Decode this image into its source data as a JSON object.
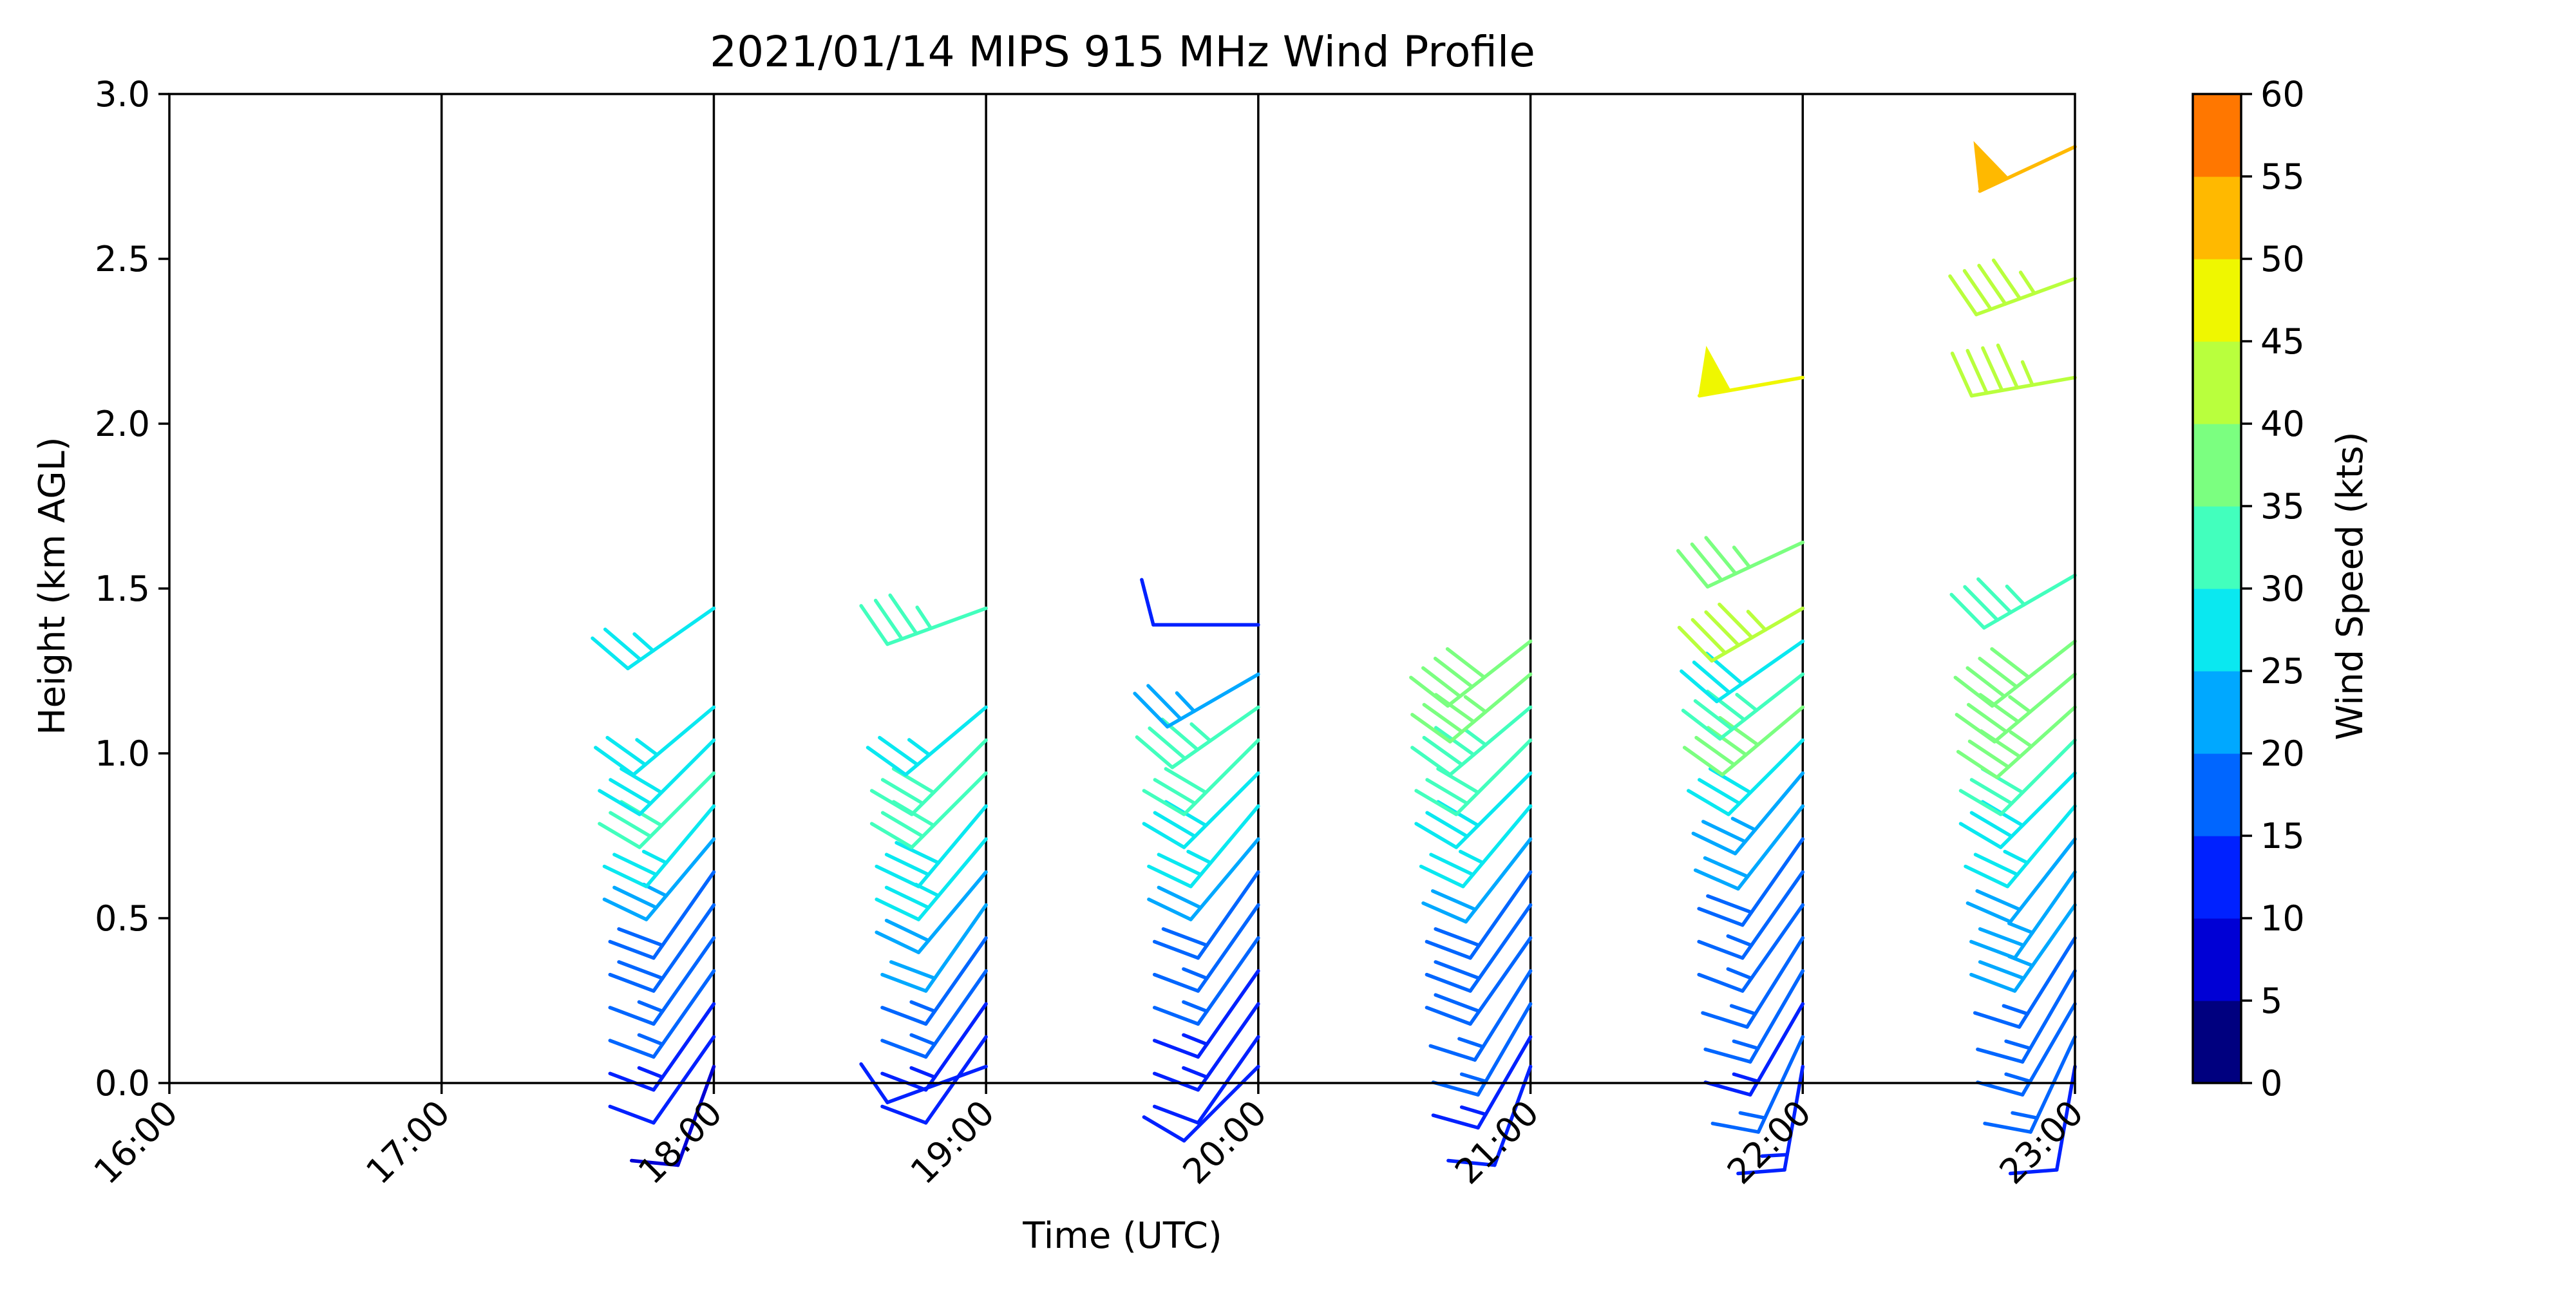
{
  "chart_data": {
    "type": "wind-barb",
    "title": "2021/01/14 MIPS 915 MHz Wind Profile",
    "xlabel": "Time (UTC)",
    "ylabel": "Height (km AGL)",
    "x_ticks": [
      "16:00",
      "17:00",
      "18:00",
      "19:00",
      "20:00",
      "21:00",
      "22:00",
      "23:00"
    ],
    "xlim": [
      "16:00",
      "23:00"
    ],
    "ylim": [
      0.0,
      3.0
    ],
    "y_ticks": [
      "0.0",
      "0.5",
      "1.0",
      "1.5",
      "2.0",
      "2.5",
      "3.0"
    ],
    "vertical_gridlines_at": [
      "17:00",
      "18:00",
      "19:00",
      "20:00",
      "21:00",
      "22:00"
    ],
    "grid": false,
    "colorbar": {
      "label": "Wind Speed (kts)",
      "ticks": [
        "0",
        "5",
        "10",
        "15",
        "20",
        "25",
        "30",
        "35",
        "40",
        "45",
        "50",
        "55",
        "60"
      ],
      "bounds": [
        0,
        60
      ],
      "step": 5,
      "colors": [
        "#00007f",
        "#0000d5",
        "#0021ff",
        "#0066ff",
        "#00a8ff",
        "#0ae8f0",
        "#42ffbd",
        "#7bff80",
        "#b9ff3d",
        "#eff700",
        "#ffb900",
        "#ff7700",
        "#ff3700",
        "#ee0000",
        "#7f0000"
      ]
    },
    "barb_units": "kts",
    "series": [
      {
        "time": "18:00",
        "barbs": [
          {
            "height": 0.05,
            "speed": 9,
            "direction": 200
          },
          {
            "height": 0.14,
            "speed": 10,
            "direction": 215
          },
          {
            "height": 0.24,
            "speed": 14,
            "direction": 215
          },
          {
            "height": 0.34,
            "speed": 15,
            "direction": 215
          },
          {
            "height": 0.44,
            "speed": 16,
            "direction": 215
          },
          {
            "height": 0.54,
            "speed": 18,
            "direction": 215
          },
          {
            "height": 0.64,
            "speed": 19,
            "direction": 215
          },
          {
            "height": 0.74,
            "speed": 24,
            "direction": 220
          },
          {
            "height": 0.84,
            "speed": 26,
            "direction": 220
          },
          {
            "height": 0.94,
            "speed": 32,
            "direction": 225
          },
          {
            "height": 1.04,
            "speed": 28,
            "direction": 225
          },
          {
            "height": 1.14,
            "speed": 25,
            "direction": 230
          },
          {
            "height": 1.44,
            "speed": 25,
            "direction": 235
          }
        ]
      },
      {
        "time": "19:00",
        "barbs": [
          {
            "height": 0.05,
            "speed": 10,
            "direction": 250
          },
          {
            "height": 0.14,
            "speed": 11,
            "direction": 215
          },
          {
            "height": 0.24,
            "speed": 13,
            "direction": 215
          },
          {
            "height": 0.34,
            "speed": 16,
            "direction": 215
          },
          {
            "height": 0.44,
            "speed": 17,
            "direction": 215
          },
          {
            "height": 0.54,
            "speed": 21,
            "direction": 215
          },
          {
            "height": 0.64,
            "speed": 22,
            "direction": 220
          },
          {
            "height": 0.74,
            "speed": 26,
            "direction": 220
          },
          {
            "height": 0.84,
            "speed": 28,
            "direction": 220
          },
          {
            "height": 0.94,
            "speed": 32,
            "direction": 225
          },
          {
            "height": 1.04,
            "speed": 30,
            "direction": 225
          },
          {
            "height": 1.14,
            "speed": 27,
            "direction": 230
          },
          {
            "height": 1.44,
            "speed": 33,
            "direction": 250
          }
        ]
      },
      {
        "time": "20:00",
        "barbs": [
          {
            "height": 0.05,
            "speed": 10,
            "direction": 225
          },
          {
            "height": 0.14,
            "speed": 12,
            "direction": 215
          },
          {
            "height": 0.24,
            "speed": 13,
            "direction": 215
          },
          {
            "height": 0.34,
            "speed": 14,
            "direction": 215
          },
          {
            "height": 0.44,
            "speed": 15,
            "direction": 215
          },
          {
            "height": 0.54,
            "speed": 17,
            "direction": 215
          },
          {
            "height": 0.64,
            "speed": 18,
            "direction": 215
          },
          {
            "height": 0.74,
            "speed": 22,
            "direction": 220
          },
          {
            "height": 0.84,
            "speed": 25,
            "direction": 220
          },
          {
            "height": 0.94,
            "speed": 28,
            "direction": 225
          },
          {
            "height": 1.04,
            "speed": 30,
            "direction": 225
          },
          {
            "height": 1.14,
            "speed": 34,
            "direction": 235
          },
          {
            "height": 1.24,
            "speed": 24,
            "direction": 240
          },
          {
            "height": 1.39,
            "speed": 12,
            "direction": 270
          }
        ]
      },
      {
        "time": "21:00",
        "barbs": [
          {
            "height": 0.05,
            "speed": 12,
            "direction": 200
          },
          {
            "height": 0.14,
            "speed": 13,
            "direction": 210
          },
          {
            "height": 0.24,
            "speed": 16,
            "direction": 210
          },
          {
            "height": 0.34,
            "speed": 17,
            "direction": 212
          },
          {
            "height": 0.44,
            "speed": 18,
            "direction": 215
          },
          {
            "height": 0.54,
            "speed": 18,
            "direction": 215
          },
          {
            "height": 0.64,
            "speed": 19,
            "direction": 215
          },
          {
            "height": 0.74,
            "speed": 22,
            "direction": 218
          },
          {
            "height": 0.84,
            "speed": 26,
            "direction": 220
          },
          {
            "height": 0.94,
            "speed": 28,
            "direction": 225
          },
          {
            "height": 1.04,
            "speed": 30,
            "direction": 225
          },
          {
            "height": 1.14,
            "speed": 33,
            "direction": 230
          },
          {
            "height": 1.24,
            "speed": 36,
            "direction": 230
          },
          {
            "height": 1.34,
            "speed": 38,
            "direction": 232
          }
        ]
      },
      {
        "time": "22:00",
        "barbs": [
          {
            "height": 0.05,
            "speed": 14,
            "direction": 190
          },
          {
            "height": 0.14,
            "speed": 15,
            "direction": 205
          },
          {
            "height": 0.24,
            "speed": 14,
            "direction": 210
          },
          {
            "height": 0.34,
            "speed": 16,
            "direction": 210
          },
          {
            "height": 0.44,
            "speed": 16,
            "direction": 212
          },
          {
            "height": 0.54,
            "speed": 17,
            "direction": 215
          },
          {
            "height": 0.64,
            "speed": 17,
            "direction": 215
          },
          {
            "height": 0.74,
            "speed": 18,
            "direction": 215
          },
          {
            "height": 0.84,
            "speed": 20,
            "direction": 218
          },
          {
            "height": 0.94,
            "speed": 23,
            "direction": 220
          },
          {
            "height": 1.04,
            "speed": 28,
            "direction": 225
          },
          {
            "height": 1.14,
            "speed": 38,
            "direction": 230
          },
          {
            "height": 1.24,
            "speed": 33,
            "direction": 232
          },
          {
            "height": 1.34,
            "speed": 29,
            "direction": 235
          },
          {
            "height": 1.44,
            "speed": 44,
            "direction": 240
          },
          {
            "height": 1.64,
            "speed": 36,
            "direction": 245
          },
          {
            "height": 2.14,
            "speed": 48,
            "direction": 260
          }
        ]
      },
      {
        "time": "23:00",
        "barbs": [
          {
            "height": 0.05,
            "speed": 12,
            "direction": 190
          },
          {
            "height": 0.14,
            "speed": 15,
            "direction": 205
          },
          {
            "height": 0.24,
            "speed": 16,
            "direction": 210
          },
          {
            "height": 0.34,
            "speed": 16,
            "direction": 210
          },
          {
            "height": 0.44,
            "speed": 16,
            "direction": 212
          },
          {
            "height": 0.54,
            "speed": 23,
            "direction": 215
          },
          {
            "height": 0.64,
            "speed": 23,
            "direction": 215
          },
          {
            "height": 0.74,
            "speed": 22,
            "direction": 218
          },
          {
            "height": 0.84,
            "speed": 25,
            "direction": 220
          },
          {
            "height": 0.94,
            "speed": 28,
            "direction": 225
          },
          {
            "height": 1.04,
            "speed": 30,
            "direction": 225
          },
          {
            "height": 1.14,
            "speed": 37,
            "direction": 228
          },
          {
            "height": 1.24,
            "speed": 37,
            "direction": 230
          },
          {
            "height": 1.34,
            "speed": 38,
            "direction": 232
          },
          {
            "height": 1.54,
            "speed": 34,
            "direction": 240
          },
          {
            "height": 2.14,
            "speed": 44,
            "direction": 260
          },
          {
            "height": 2.44,
            "speed": 44,
            "direction": 250
          },
          {
            "height": 2.84,
            "speed": 52,
            "direction": 245
          }
        ]
      }
    ]
  }
}
